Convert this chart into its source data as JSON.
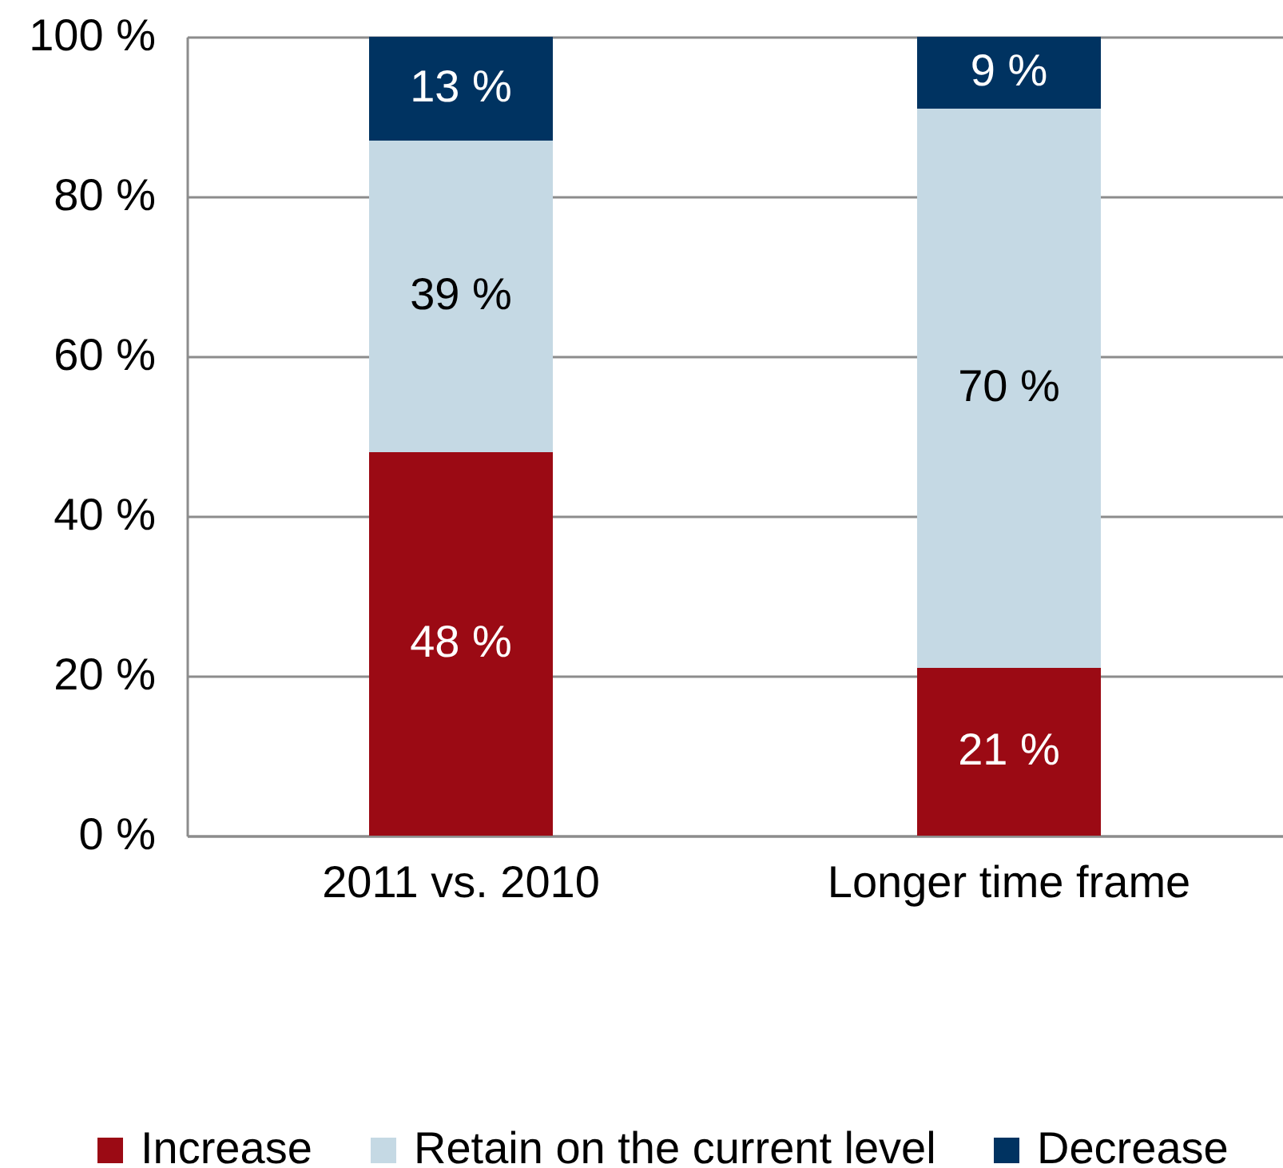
{
  "chart_data": {
    "type": "bar",
    "stacked": true,
    "categories": [
      "2011 vs. 2010",
      "Longer time frame"
    ],
    "series": [
      {
        "name": "Increase",
        "color": "#9b0a14",
        "values": [
          48,
          21
        ],
        "value_labels": [
          "48 %",
          "21 %"
        ]
      },
      {
        "name": "Retain on the current level",
        "color": "#c5d9e4",
        "values": [
          39,
          70
        ],
        "value_labels": [
          "39 %",
          "70 %"
        ]
      },
      {
        "name": "Decrease",
        "color": "#003361",
        "values": [
          13,
          9
        ],
        "value_labels": [
          "13 %",
          "9 %"
        ]
      }
    ],
    "ylim": [
      0,
      100
    ],
    "yticks": [
      {
        "value": 0,
        "label": "0 %"
      },
      {
        "value": 20,
        "label": "20 %"
      },
      {
        "value": 40,
        "label": "40 %"
      },
      {
        "value": 60,
        "label": "60 %"
      },
      {
        "value": 80,
        "label": "80 %"
      },
      {
        "value": 100,
        "label": "100 %"
      }
    ],
    "grid": "y",
    "legend": "bottom"
  }
}
